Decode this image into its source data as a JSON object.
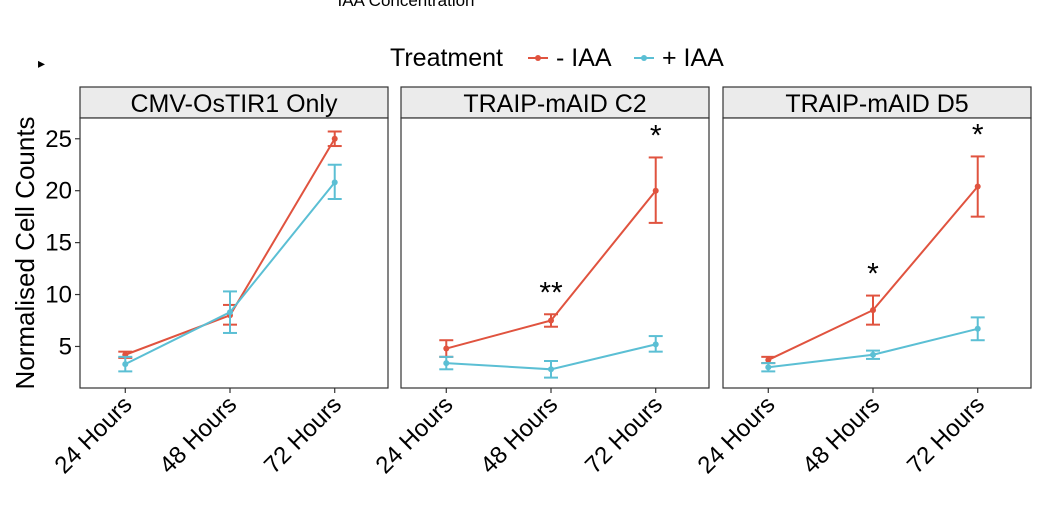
{
  "top_caption": "IAA Concentration",
  "stray_mark": "▸",
  "legend": {
    "title": "Treatment",
    "entries": [
      {
        "label": "- IAA",
        "color": "#E0533F"
      },
      {
        "label": "+ IAA",
        "color": "#5BBFD4"
      }
    ]
  },
  "chart_data": {
    "type": "line",
    "ylabel": "Normalised Cell Counts",
    "categories": [
      "24 Hours",
      "48 Hours",
      "72 Hours"
    ],
    "ylim": [
      1.0,
      27.0
    ],
    "yticks": [
      5,
      10,
      15,
      20,
      25
    ],
    "panels": [
      {
        "title": "CMV-OsTIR1 Only",
        "series": [
          {
            "name": "- IAA",
            "color": "#E0533F",
            "values": [
              4.2,
              8.0,
              25.0
            ],
            "err_low": [
              3.9,
              7.1,
              24.3
            ],
            "err_high": [
              4.5,
              9.0,
              25.7
            ]
          },
          {
            "name": "+ IAA",
            "color": "#5BBFD4",
            "values": [
              3.3,
              8.3,
              20.8
            ],
            "err_low": [
              2.6,
              6.3,
              19.2
            ],
            "err_high": [
              4.0,
              10.3,
              22.5
            ]
          }
        ],
        "annotations": [
          "",
          "",
          ""
        ]
      },
      {
        "title": "TRAIP-mAID C2",
        "series": [
          {
            "name": "- IAA",
            "color": "#E0533F",
            "values": [
              4.8,
              7.5,
              20.0
            ],
            "err_low": [
              4.0,
              6.9,
              16.9
            ],
            "err_high": [
              5.6,
              8.1,
              23.2
            ]
          },
          {
            "name": "+ IAA",
            "color": "#5BBFD4",
            "values": [
              3.4,
              2.8,
              5.2
            ],
            "err_low": [
              2.8,
              2.0,
              4.5
            ],
            "err_high": [
              4.0,
              3.6,
              6.0
            ]
          }
        ],
        "annotations": [
          "",
          "**",
          "*"
        ]
      },
      {
        "title": "TRAIP-mAID D5",
        "series": [
          {
            "name": "- IAA",
            "color": "#E0533F",
            "values": [
              3.7,
              8.5,
              20.4
            ],
            "err_low": [
              3.4,
              7.1,
              17.5
            ],
            "err_high": [
              4.0,
              9.9,
              23.3
            ]
          },
          {
            "name": "+ IAA",
            "color": "#5BBFD4",
            "values": [
              3.0,
              4.2,
              6.7
            ],
            "err_low": [
              2.6,
              3.8,
              5.6
            ],
            "err_high": [
              3.4,
              4.6,
              7.8
            ]
          }
        ],
        "annotations": [
          "",
          "*",
          "*"
        ]
      }
    ]
  }
}
